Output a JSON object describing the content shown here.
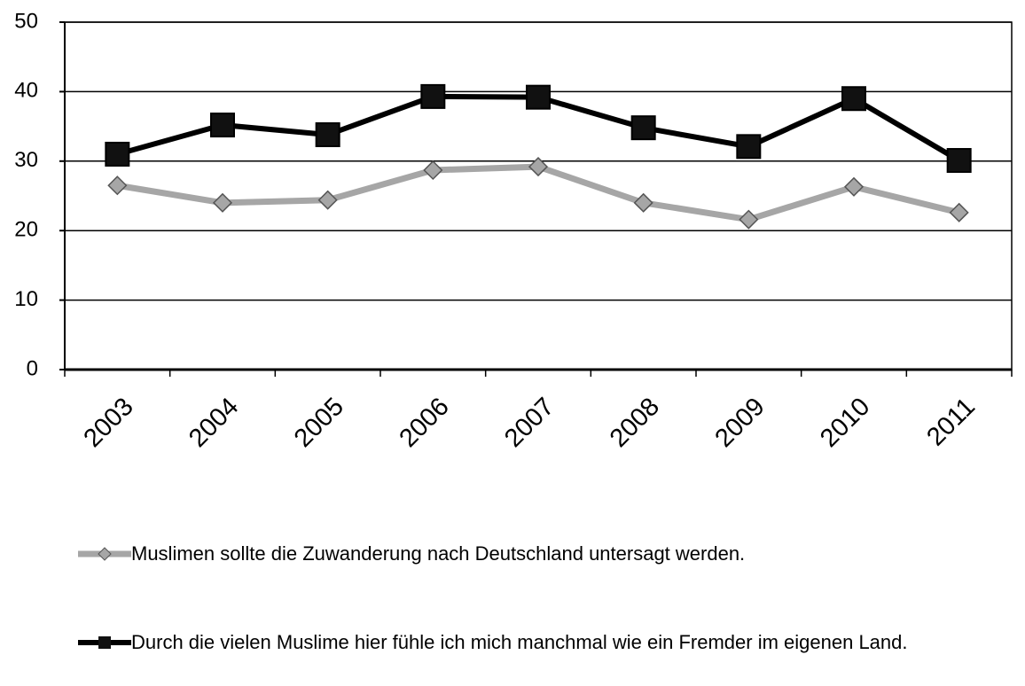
{
  "chart_data": {
    "type": "line",
    "categories": [
      "2003",
      "2004",
      "2005",
      "2006",
      "2007",
      "2008",
      "2009",
      "2010",
      "2011"
    ],
    "series": [
      {
        "name": "Muslimen sollte die Zuwanderung nach Deutschland untersagt werden.",
        "color": "#a6a6a6",
        "marker": "diamond",
        "values": [
          26.5,
          24.0,
          24.4,
          28.7,
          29.2,
          24.0,
          21.6,
          26.3,
          22.6
        ]
      },
      {
        "name": "Durch die vielen Muslime hier fühle ich mich manchmal wie ein Fremder im eigenen Land.",
        "color": "#000000",
        "marker": "square",
        "values": [
          31.0,
          35.2,
          33.8,
          39.3,
          39.2,
          34.8,
          32.1,
          39.0,
          30.1
        ]
      }
    ],
    "ylim": [
      0,
      50
    ],
    "yticks": [
      0,
      10,
      20,
      30,
      40,
      50
    ],
    "grid": true
  }
}
